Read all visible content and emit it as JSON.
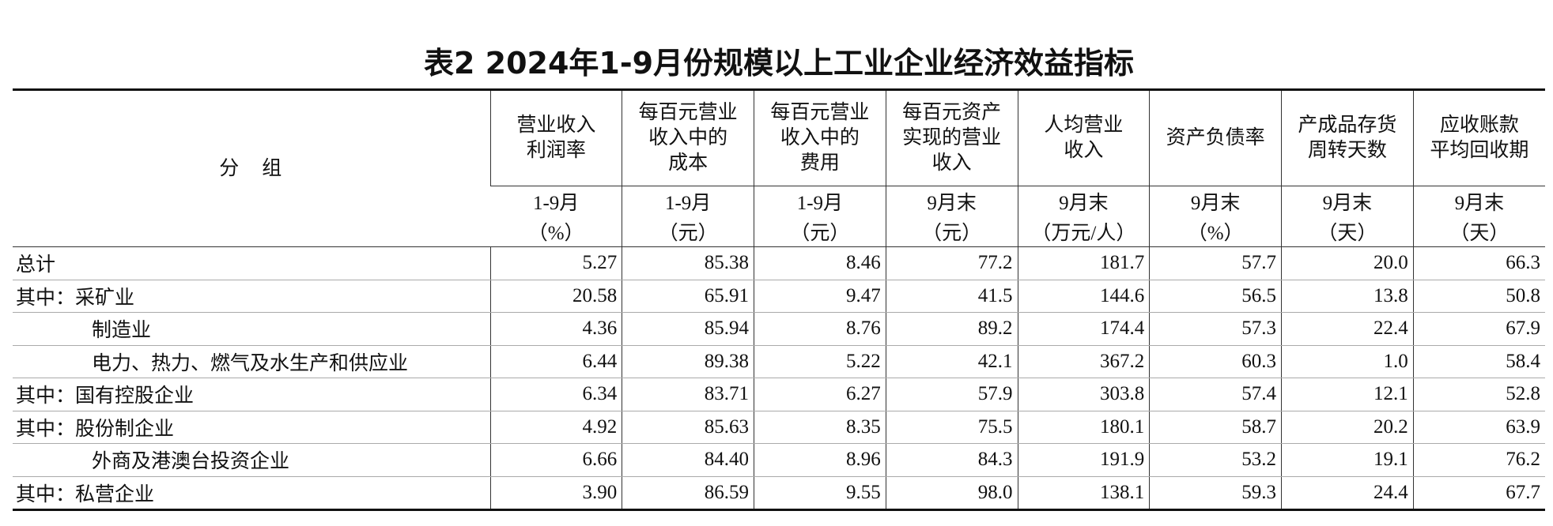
{
  "table": {
    "title": "表2 2024年1-9月份规模以上工业企业经济效益指标",
    "group_header": "分　组",
    "columns": [
      {
        "name": "营业收入\n利润率",
        "period": "1-9月",
        "unit": "（%）"
      },
      {
        "name": "每百元营业\n收入中的\n成本",
        "period": "1-9月",
        "unit": "（元）"
      },
      {
        "name": "每百元营业\n收入中的\n费用",
        "period": "1-9月",
        "unit": "（元）"
      },
      {
        "name": "每百元资产\n实现的营业\n收入",
        "period": "9月末",
        "unit": "（元）"
      },
      {
        "name": "人均营业\n收入",
        "period": "9月末",
        "unit": "（万元/人）"
      },
      {
        "name": "资产负债率",
        "period": "9月末",
        "unit": "（%）"
      },
      {
        "name": "产成品存货\n周转天数",
        "period": "9月末",
        "unit": "（天）"
      },
      {
        "name": "应收账款\n平均回收期",
        "period": "9月末",
        "unit": "（天）"
      }
    ],
    "rows": [
      {
        "label": "总计",
        "values": [
          "5.27",
          "85.38",
          "8.46",
          "77.2",
          "181.7",
          "57.7",
          "20.0",
          "66.3"
        ]
      },
      {
        "label": "其中：采矿业",
        "values": [
          "20.58",
          "65.91",
          "9.47",
          "41.5",
          "144.6",
          "56.5",
          "13.8",
          "50.8"
        ]
      },
      {
        "label": "制造业",
        "values": [
          "4.36",
          "85.94",
          "8.76",
          "89.2",
          "174.4",
          "57.3",
          "22.4",
          "67.9"
        ]
      },
      {
        "label": "电力、热力、燃气及水生产和供应业",
        "values": [
          "6.44",
          "89.38",
          "5.22",
          "42.1",
          "367.2",
          "60.3",
          "1.0",
          "58.4"
        ]
      },
      {
        "label": "其中：国有控股企业",
        "values": [
          "6.34",
          "83.71",
          "6.27",
          "57.9",
          "303.8",
          "57.4",
          "12.1",
          "52.8"
        ]
      },
      {
        "label": "其中：股份制企业",
        "values": [
          "4.92",
          "85.63",
          "8.35",
          "75.5",
          "180.1",
          "58.7",
          "20.2",
          "63.9"
        ]
      },
      {
        "label": "外商及港澳台投资企业",
        "values": [
          "6.66",
          "84.40",
          "8.96",
          "84.3",
          "191.9",
          "53.2",
          "19.1",
          "76.2"
        ]
      },
      {
        "label": "其中：私营企业",
        "values": [
          "3.90",
          "86.59",
          "9.55",
          "98.0",
          "138.1",
          "59.3",
          "24.4",
          "67.7"
        ]
      }
    ]
  }
}
